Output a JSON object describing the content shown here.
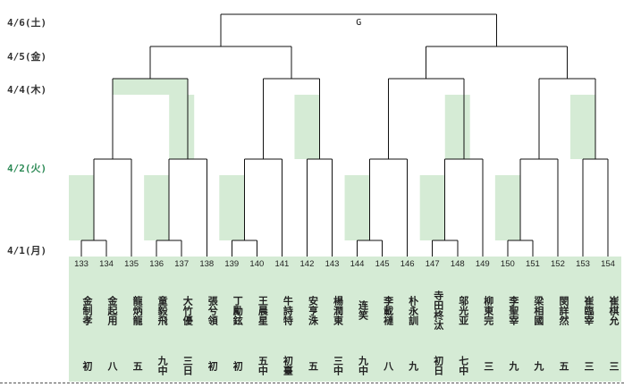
{
  "dates": [
    {
      "label": "4/6(土)",
      "highlight": false
    },
    {
      "label": "4/5(金)",
      "highlight": false
    },
    {
      "label": "4/4(木)",
      "highlight": false
    },
    {
      "label": "4/2(火)",
      "highlight": true
    },
    {
      "label": "4/1(月)",
      "highlight": false
    }
  ],
  "final_label": "G",
  "players": [
    {
      "num": "133",
      "name": "金制孝",
      "rank": "初"
    },
    {
      "num": "134",
      "name": "金起用",
      "rank": "八"
    },
    {
      "num": "135",
      "name": "龍炳龍",
      "rank": "五"
    },
    {
      "num": "136",
      "name": "童毅飛",
      "rank": "九中"
    },
    {
      "num": "137",
      "name": "大竹優",
      "rank": "三日"
    },
    {
      "num": "138",
      "name": "張兮領",
      "rank": "初"
    },
    {
      "num": "139",
      "name": "丁勵鉉",
      "rank": "初"
    },
    {
      "num": "140",
      "name": "王晨星",
      "rank": "五中"
    },
    {
      "num": "141",
      "name": "牛詩特",
      "rank": "初臺"
    },
    {
      "num": "142",
      "name": "安亨洙",
      "rank": "五"
    },
    {
      "num": "143",
      "name": "楊潤東",
      "rank": "三中"
    },
    {
      "num": "144",
      "name": "连笑",
      "rank": "九中"
    },
    {
      "num": "145",
      "name": "李載褳",
      "rank": "八"
    },
    {
      "num": "146",
      "name": "朴永訓",
      "rank": "九"
    },
    {
      "num": "147",
      "name": "寺田柊汰",
      "rank": "初日"
    },
    {
      "num": "148",
      "name": "邬光亚",
      "rank": "七中"
    },
    {
      "num": "149",
      "name": "柳東完",
      "rank": "三"
    },
    {
      "num": "150",
      "name": "李聖宰",
      "rank": "九"
    },
    {
      "num": "151",
      "name": "梁相國",
      "rank": "九"
    },
    {
      "num": "152",
      "name": "閔詳然",
      "rank": "五"
    },
    {
      "num": "153",
      "name": "崔臨宰",
      "rank": "三"
    },
    {
      "num": "154",
      "name": "崔棋允",
      "rank": "三"
    }
  ]
}
